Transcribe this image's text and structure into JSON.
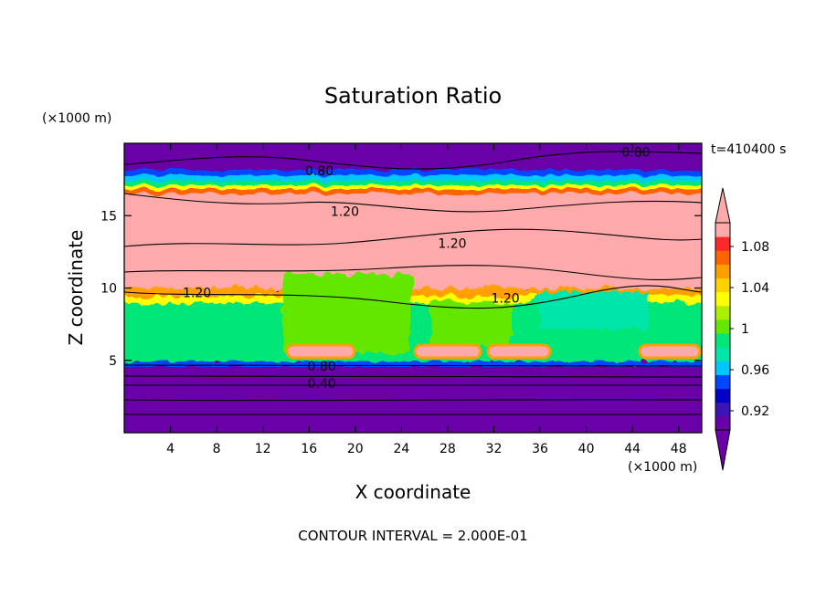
{
  "chart_data": {
    "type": "heatmap",
    "title": "Saturation Ratio",
    "xlabel": "X coordinate",
    "ylabel": "Z coordinate",
    "x_unit": "(×1000 m)",
    "y_unit": "(×1000 m)",
    "time_label": "t=410400 s",
    "footer": "CONTOUR INTERVAL = 2.000E-01",
    "xlim": [
      0,
      50
    ],
    "ylim": [
      0,
      20
    ],
    "x_ticks": [
      4,
      8,
      12,
      16,
      20,
      24,
      28,
      32,
      36,
      40,
      44,
      48
    ],
    "y_ticks": [
      5,
      10,
      15
    ],
    "colorbar": {
      "colors": [
        "#6a00a8",
        "#3c14b4",
        "#0000c8",
        "#0046ff",
        "#00c8ff",
        "#00e6aa",
        "#00e678",
        "#64e600",
        "#aaf000",
        "#ffff00",
        "#ffd200",
        "#ffa000",
        "#ff6400",
        "#ff2828",
        "#ffaaaa"
      ],
      "boundaries": [
        0.92,
        0.94,
        0.96,
        0.98,
        1.0,
        1.02,
        1.04,
        1.06,
        1.08
      ],
      "labels": [
        "0.92",
        "0.96",
        "1",
        "1.04",
        "1.08"
      ],
      "extend": "both"
    },
    "contour_labels": [
      {
        "text": "0.80",
        "x": 16.9,
        "y": 18.1
      },
      {
        "text": "0.80",
        "x": 44.3,
        "y": 19.4
      },
      {
        "text": "1.20",
        "x": 19.1,
        "y": 15.3
      },
      {
        "text": "1.20",
        "x": 28.4,
        "y": 13.1
      },
      {
        "text": "1.20",
        "x": 6.3,
        "y": 9.7
      },
      {
        "text": "1.20",
        "x": 33.0,
        "y": 9.3
      },
      {
        "text": "0.80",
        "x": 17.1,
        "y": 4.6
      },
      {
        "text": "0.40",
        "x": 17.1,
        "y": 3.4
      }
    ]
  }
}
